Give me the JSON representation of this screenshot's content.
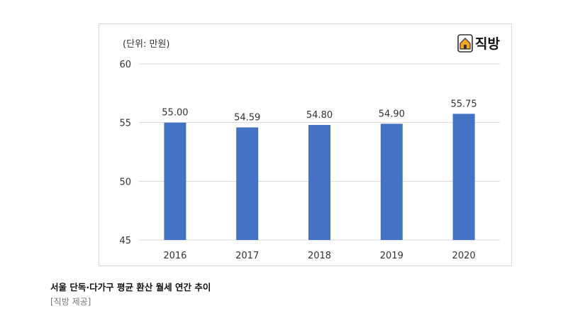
{
  "chart_data": {
    "type": "bar",
    "unit_label": "(단위: 만원)",
    "categories": [
      "2016",
      "2017",
      "2018",
      "2019",
      "2020"
    ],
    "values": [
      55.0,
      54.59,
      54.8,
      54.9,
      55.75
    ],
    "value_labels": [
      "55.00",
      "54.59",
      "54.80",
      "54.90",
      "55.75"
    ],
    "ylim": [
      45,
      60
    ],
    "yticks": [
      "45",
      "50",
      "55",
      "60"
    ],
    "grid": true,
    "bar_color": "#4472c4"
  },
  "logo": {
    "text": "직방",
    "icon": "house-icon",
    "color": "#f5a623"
  },
  "caption": {
    "title": "서울 단독·다가구 평균 환산 월세 연간 추이",
    "source": "[직방 제공]"
  }
}
